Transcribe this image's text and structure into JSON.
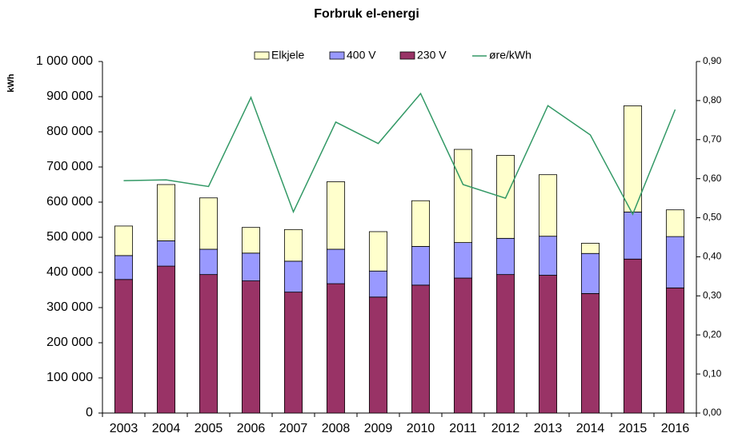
{
  "chart_data": {
    "type": "bar",
    "stacked": true,
    "title": "Forbruk el-energi",
    "y_label": "kWh",
    "categories": [
      "2003",
      "2004",
      "2005",
      "2006",
      "2007",
      "2008",
      "2009",
      "2010",
      "2011",
      "2012",
      "2013",
      "2014",
      "2015",
      "2016"
    ],
    "series": [
      {
        "name": "230 V",
        "color": "#993366",
        "values": [
          380000,
          418000,
          394000,
          376000,
          344000,
          368000,
          330000,
          364000,
          384000,
          394000,
          392000,
          340000,
          438000,
          356000
        ]
      },
      {
        "name": "400 V",
        "color": "#9999ff",
        "values": [
          68000,
          72000,
          72000,
          79000,
          88000,
          98000,
          74000,
          110000,
          101000,
          103000,
          111000,
          114000,
          134000,
          146000
        ]
      },
      {
        "name": "Elkjele",
        "color": "#ffffcc",
        "values": [
          84000,
          160000,
          146000,
          73000,
          90000,
          192000,
          112000,
          130000,
          265000,
          236000,
          175000,
          29000,
          302000,
          76000
        ]
      },
      {
        "name": "øre/kWh",
        "color": "#339966",
        "type": "line",
        "axis": "y2",
        "values": [
          0.595,
          0.597,
          0.58,
          0.808,
          0.515,
          0.745,
          0.69,
          0.818,
          0.585,
          0.55,
          0.787,
          0.712,
          0.509,
          0.777
        ]
      }
    ],
    "legend_order": [
      2,
      1,
      0,
      3
    ],
    "ylim": [
      0,
      1000000
    ],
    "yticks": [
      0,
      {
        "value": 100000,
        "label": "100 000"
      },
      {
        "value": 200000,
        "label": "200 000"
      },
      {
        "value": 300000,
        "label": "300 000"
      },
      {
        "value": 400000,
        "label": "400 000"
      },
      {
        "value": 500000,
        "label": "500 000"
      },
      {
        "value": 600000,
        "label": "600 000"
      },
      {
        "value": 700000,
        "label": "700 000"
      },
      {
        "value": 800000,
        "label": "800 000"
      },
      {
        "value": 900000,
        "label": "900 000"
      },
      {
        "value": 1000000,
        "label": "1 000 000"
      }
    ],
    "y2lim": [
      0,
      0.9
    ],
    "y2ticks": [
      {
        "value": 0,
        "label": "0,00"
      },
      {
        "value": 0.1,
        "label": "0,10"
      },
      {
        "value": 0.2,
        "label": "0,20"
      },
      {
        "value": 0.3,
        "label": "0,30"
      },
      {
        "value": 0.4,
        "label": "0,40"
      },
      {
        "value": 0.5,
        "label": "0,50"
      },
      {
        "value": 0.6,
        "label": "0,60"
      },
      {
        "value": 0.7,
        "label": "0,70"
      },
      {
        "value": 0.8,
        "label": "0,80"
      },
      {
        "value": 0.9,
        "label": "0,90"
      }
    ]
  }
}
